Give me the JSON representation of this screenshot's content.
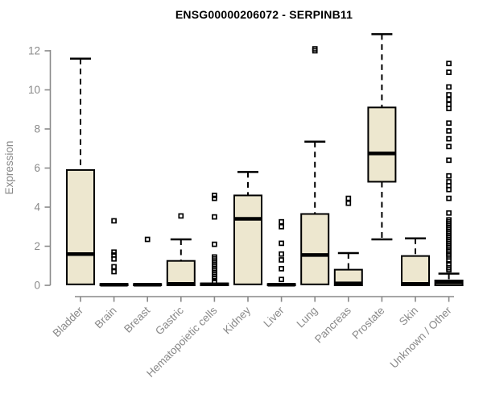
{
  "title": "ENSG00000206072 - SERPINB11",
  "chart_data": {
    "type": "boxplot",
    "title": "ENSG00000206072 - SERPINB11",
    "ylabel": "Expression",
    "xlabel": "",
    "ylim": [
      0,
      12
    ],
    "yticks": [
      0,
      2,
      4,
      6,
      8,
      10,
      12
    ],
    "grid": false,
    "legend": "none",
    "box_fill_color": "#ede7cf",
    "box_border_color": "#000000",
    "median_color": "#000000",
    "whisker_style": "dashed",
    "axis_color": "#898989",
    "outlier_marker": "open-square",
    "categories": [
      "Bladder",
      "Brain",
      "Breast",
      "Gastric",
      "Hematopoietic cells",
      "Kidney",
      "Liver",
      "Lung",
      "Pancreas",
      "Prostate",
      "Skin",
      "Unknown / Other"
    ],
    "boxes": [
      {
        "category": "Bladder",
        "low": 0,
        "q1": 0.05,
        "median": 1.6,
        "q3": 5.9,
        "high": 11.6,
        "outliers": []
      },
      {
        "category": "Brain",
        "low": 0,
        "q1": 0,
        "median": 0.03,
        "q3": 0.07,
        "high": 0.07,
        "outliers": [
          3.3,
          1.7,
          1.55,
          1.35,
          0.95,
          0.7
        ]
      },
      {
        "category": "Breast",
        "low": 0,
        "q1": 0,
        "median": 0.03,
        "q3": 0.07,
        "high": 0.07,
        "outliers": [
          2.35
        ]
      },
      {
        "category": "Gastric",
        "low": 0,
        "q1": 0,
        "median": 0.07,
        "q3": 1.25,
        "high": 2.35,
        "outliers": [
          3.55
        ]
      },
      {
        "category": "Hematopoietic cells",
        "low": 0,
        "q1": 0,
        "median": 0.05,
        "q3": 0.1,
        "high": 0.1,
        "outliers": [
          4.6,
          4.45,
          3.5,
          2.1,
          1.45,
          1.35,
          1.25,
          1.15,
          1.05,
          0.95,
          0.85,
          0.75,
          0.65,
          0.55,
          0.45,
          0.35,
          0.2
        ]
      },
      {
        "category": "Kidney",
        "low": 0,
        "q1": 0.05,
        "median": 3.4,
        "q3": 4.6,
        "high": 5.8,
        "outliers": []
      },
      {
        "category": "Liver",
        "low": 0,
        "q1": 0,
        "median": 0.03,
        "q3": 0.07,
        "high": 0.07,
        "outliers": [
          3.25,
          3.0,
          2.15,
          1.6,
          1.3,
          0.85,
          0.3
        ]
      },
      {
        "category": "Lung",
        "low": 0,
        "q1": 0.05,
        "median": 1.55,
        "q3": 3.65,
        "high": 7.35,
        "outliers": [
          12.0,
          12.1
        ]
      },
      {
        "category": "Pancreas",
        "low": 0,
        "q1": 0,
        "median": 0.1,
        "q3": 0.8,
        "high": 1.65,
        "outliers": [
          4.45,
          4.2
        ]
      },
      {
        "category": "Prostate",
        "low": 2.35,
        "q1": 5.3,
        "median": 6.75,
        "q3": 9.1,
        "high": 12.85,
        "outliers": []
      },
      {
        "category": "Skin",
        "low": 0,
        "q1": 0,
        "median": 0.07,
        "q3": 1.5,
        "high": 2.4,
        "outliers": []
      },
      {
        "category": "Unknown / Other",
        "low": 0,
        "q1": 0,
        "median": 0.15,
        "q3": 0.25,
        "high": 0.6,
        "outliers": [
          11.35,
          10.9,
          10.15,
          9.75,
          9.5,
          9.25,
          9.05,
          8.3,
          7.9,
          7.5,
          7.1,
          6.4,
          5.6,
          5.3,
          5.1,
          4.9,
          4.45,
          3.7,
          3.35,
          3.25,
          3.15,
          3.05,
          2.95,
          2.85,
          2.75,
          2.65,
          2.55,
          2.45,
          2.35,
          2.25,
          2.15,
          2.05,
          1.95,
          1.85,
          1.75,
          1.65,
          1.55,
          1.45,
          1.25,
          1.1,
          0.9,
          0.8
        ]
      }
    ]
  }
}
